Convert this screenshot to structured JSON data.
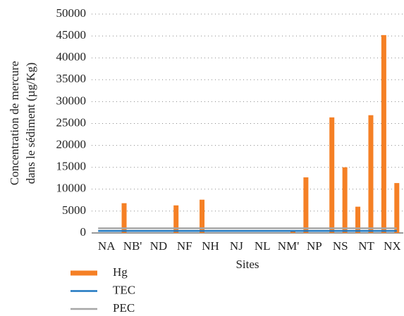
{
  "chart_data": {
    "type": "bar",
    "categories": [
      "NA",
      null,
      "NB'",
      null,
      "ND",
      null,
      "NF",
      null,
      "NH",
      null,
      "NJ",
      null,
      "NL",
      null,
      "NM'",
      null,
      "NP",
      null,
      "NS",
      null,
      "NT",
      null,
      "NX",
      null
    ],
    "series": [
      {
        "name": "Hg",
        "type": "bar",
        "color": "#f58025",
        "values": [
          null,
          null,
          6800,
          null,
          null,
          null,
          6300,
          null,
          7600,
          null,
          null,
          null,
          null,
          null,
          null,
          600,
          12700,
          null,
          26400,
          15000,
          6000,
          26900,
          45200,
          11400
        ]
      },
      {
        "name": "TEC",
        "type": "line",
        "color": "#1f77c0",
        "values": [
          460,
          460,
          460,
          460,
          460,
          460,
          460,
          460,
          460,
          460,
          460,
          460,
          460,
          460,
          460,
          460,
          460,
          460,
          460,
          460,
          460,
          460,
          460,
          460
        ]
      },
      {
        "name": "PEC",
        "type": "line",
        "color": "#a6a6a6",
        "values": [
          1060,
          1060,
          1060,
          1060,
          1060,
          1060,
          1060,
          1060,
          1060,
          1060,
          1060,
          1060,
          1060,
          1060,
          1060,
          1060,
          1060,
          1060,
          1060,
          1060,
          1060,
          1060,
          1060,
          1060
        ]
      }
    ],
    "xlabel": "Sites",
    "ylabel": [
      "Concentration de mercure",
      "dans le sédiment (µg/Kg)"
    ],
    "ylim": [
      0,
      50000
    ],
    "yticks": [
      0,
      5000,
      10000,
      15000,
      20000,
      25000,
      30000,
      35000,
      40000,
      45000,
      50000
    ],
    "grid": true
  }
}
